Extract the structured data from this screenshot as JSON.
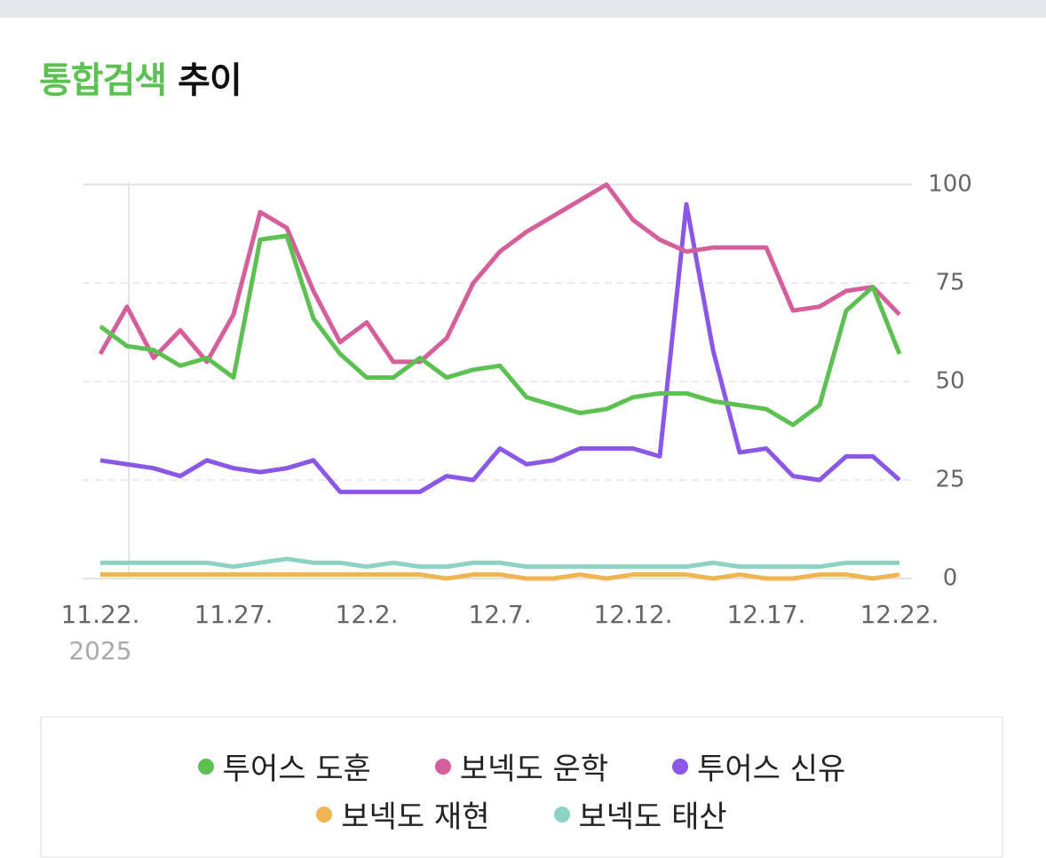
{
  "chart_data": {
    "type": "line",
    "title_highlight": "통합검색",
    "title_rest": "추이",
    "categories": [
      "11.22.",
      null,
      null,
      null,
      null,
      "11.27.",
      null,
      null,
      null,
      null,
      "12.2.",
      null,
      null,
      null,
      null,
      "12.7.",
      null,
      null,
      null,
      null,
      "12.12.",
      null,
      null,
      null,
      null,
      "12.17.",
      null,
      null,
      null,
      null,
      "12.22."
    ],
    "year_label": "2025",
    "ylim": [
      0,
      100
    ],
    "yticks": [
      0,
      25,
      50,
      75,
      100
    ],
    "grid": true,
    "series": [
      {
        "name": "투어스 도훈",
        "color": "#5cc152",
        "values": [
          64,
          59,
          58,
          54,
          56,
          51,
          86,
          87,
          66,
          57,
          51,
          51,
          56,
          51,
          53,
          54,
          46,
          44,
          42,
          43,
          46,
          47,
          47,
          45,
          44,
          43,
          39,
          44,
          68,
          74,
          57
        ]
      },
      {
        "name": "보넥도 운학",
        "color": "#d45f9b",
        "values": [
          57,
          69,
          56,
          63,
          55,
          67,
          93,
          89,
          73,
          60,
          65,
          55,
          55,
          61,
          75,
          83,
          88,
          92,
          96,
          100,
          91,
          86,
          83,
          84,
          84,
          84,
          68,
          69,
          73,
          74,
          67
        ]
      },
      {
        "name": "투어스 신유",
        "color": "#8a57e6",
        "values": [
          30,
          29,
          28,
          26,
          30,
          28,
          27,
          28,
          30,
          22,
          22,
          22,
          22,
          26,
          25,
          33,
          29,
          30,
          33,
          33,
          33,
          31,
          95,
          58,
          32,
          33,
          26,
          25,
          31,
          31,
          25
        ]
      },
      {
        "name": "보넥도 재현",
        "color": "#f0b550",
        "values": [
          1,
          1,
          1,
          1,
          1,
          1,
          1,
          1,
          1,
          1,
          1,
          1,
          1,
          0,
          1,
          1,
          0,
          0,
          1,
          0,
          1,
          1,
          1,
          0,
          1,
          0,
          0,
          1,
          1,
          0,
          1
        ]
      },
      {
        "name": "보넥도 태산",
        "color": "#8dd3c3",
        "values": [
          4,
          4,
          4,
          4,
          4,
          3,
          4,
          5,
          4,
          4,
          3,
          4,
          3,
          3,
          4,
          4,
          3,
          3,
          3,
          3,
          3,
          3,
          3,
          4,
          3,
          3,
          3,
          3,
          4,
          4,
          4
        ]
      }
    ]
  }
}
